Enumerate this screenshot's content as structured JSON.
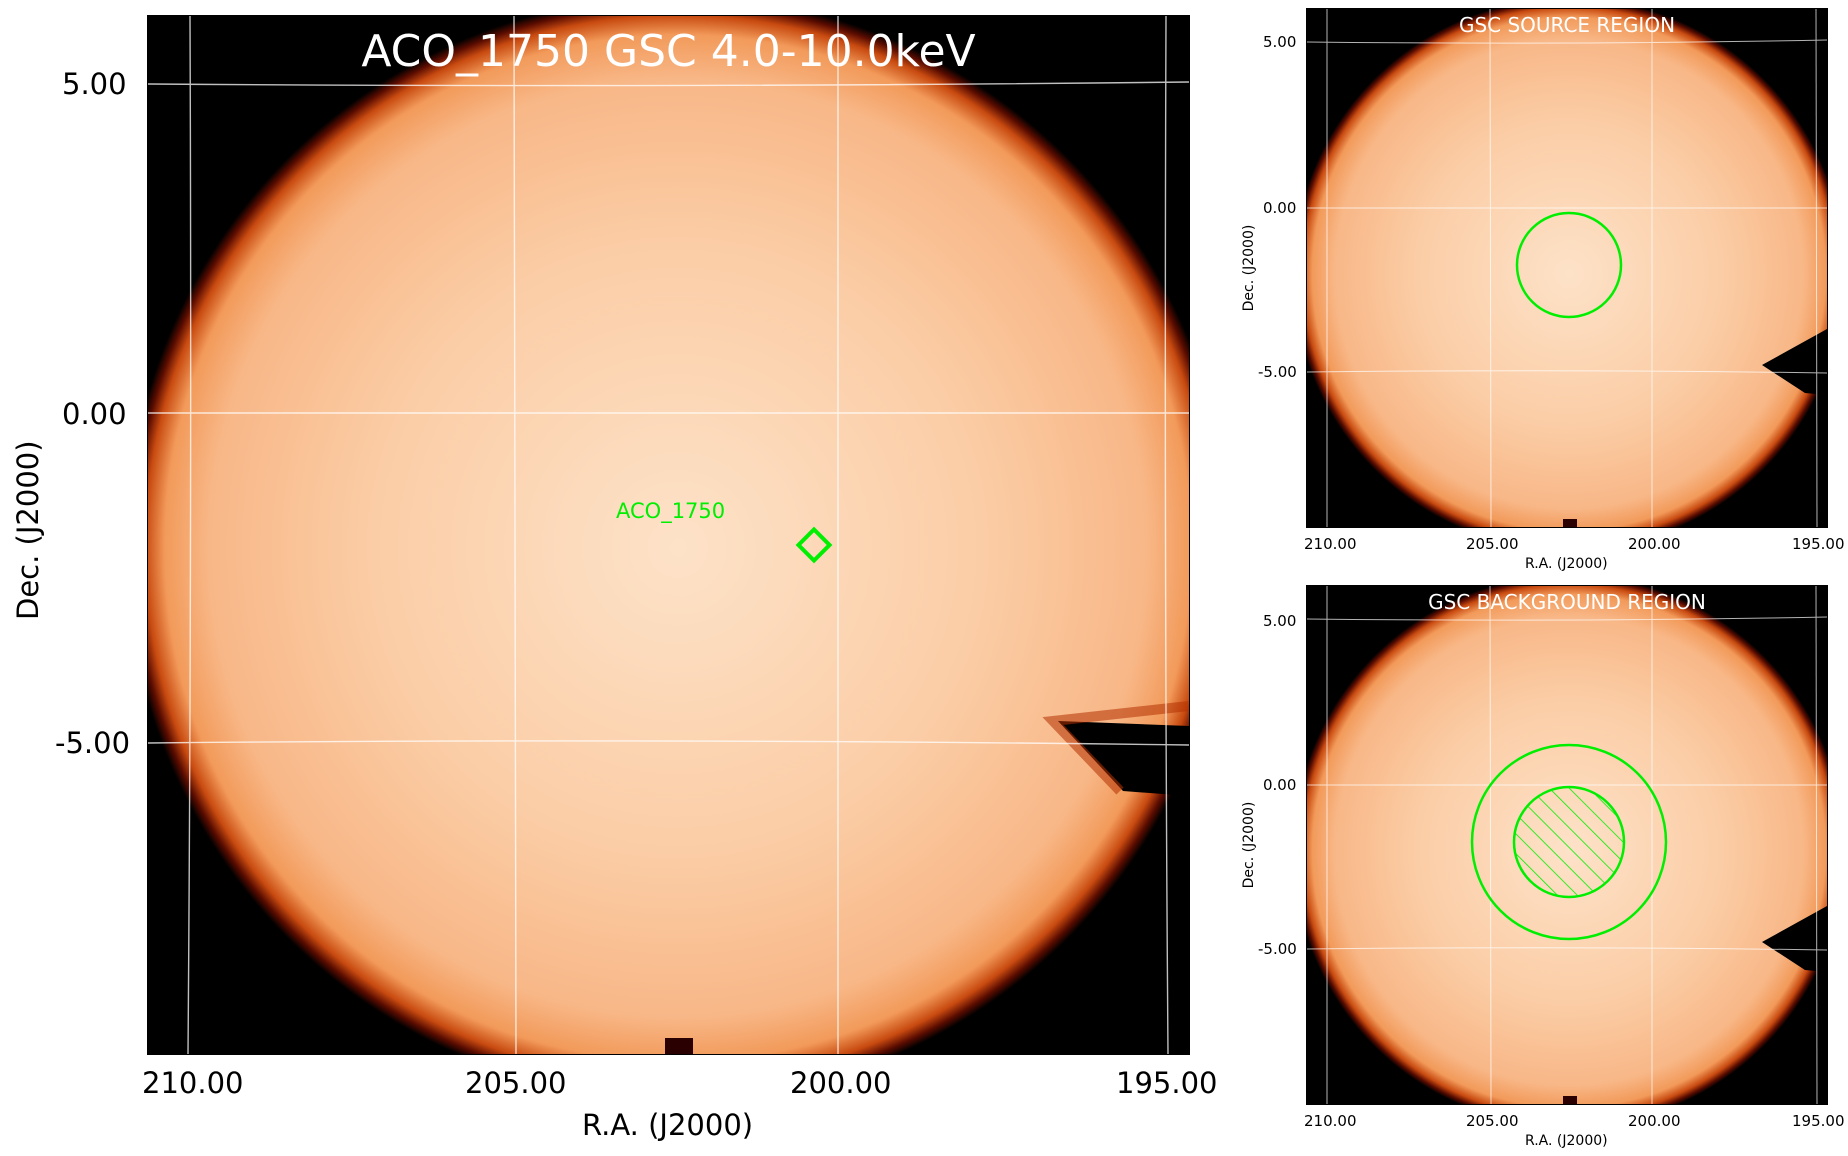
{
  "main_panel": {
    "title": "ACO_1750 GSC 4.0-10.0keV",
    "source_label": "ACO_1750",
    "x_ticks": [
      "210.00",
      "205.00",
      "200.00",
      "195.00"
    ],
    "y_ticks": [
      "5.00",
      "0.00",
      "-5.00"
    ],
    "xlabel": "R.A. (J2000)",
    "ylabel": "Dec. (J2000)"
  },
  "source_panel": {
    "title": "GSC SOURCE REGION",
    "x_ticks": [
      "210.00",
      "205.00",
      "200.00",
      "195.00"
    ],
    "y_ticks": [
      "5.00",
      "0.00",
      "-5.00"
    ],
    "xlabel": "R.A. (J2000)",
    "ylabel": "Dec. (J2000)"
  },
  "background_panel": {
    "title": "GSC BACKGROUND REGION",
    "x_ticks": [
      "210.00",
      "205.00",
      "200.00",
      "195.00"
    ],
    "y_ticks": [
      "5.00",
      "0.00",
      "-5.00"
    ],
    "xlabel": "R.A. (J2000)",
    "ylabel": "Dec. (J2000)"
  },
  "colors": {
    "image_fill": "#f7b27f",
    "image_center": "#fde0c6",
    "image_edge": "#b23000",
    "region_marker": "#00ee00",
    "grid": "#ffffff",
    "text_on_image": "#ffffff"
  }
}
